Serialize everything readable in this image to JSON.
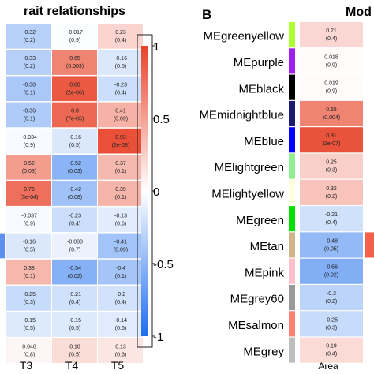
{
  "chart_data": [
    {
      "type": "heatmap",
      "title": "rait relationships",
      "columns": [
        "T3",
        "T4",
        "T5"
      ],
      "cells": [
        [
          {
            "v": "-0.32",
            "p": "(0.2)"
          },
          {
            "v": "-0.017",
            "p": "(0.9)"
          },
          {
            "v": "0.23",
            "p": "(0.4)"
          }
        ],
        [
          {
            "v": "-0.33",
            "p": "(0.2)"
          },
          {
            "v": "0.65",
            "p": "(0.003)"
          },
          {
            "v": "-0.16",
            "p": "(0.5)"
          }
        ],
        [
          {
            "v": "-0.38",
            "p": "(0.1)"
          },
          {
            "v": "0.88",
            "p": "(2e-06)"
          },
          {
            "v": "-0.23",
            "p": "(0.4)"
          }
        ],
        [
          {
            "v": "-0.36",
            "p": "(0.1)"
          },
          {
            "v": "0.8",
            "p": "(7e-05)"
          },
          {
            "v": "0.41",
            "p": "(0.09)"
          }
        ],
        [
          {
            "v": "-0.034",
            "p": "(0.9)"
          },
          {
            "v": "-0.16",
            "p": "(0.5)"
          },
          {
            "v": "0.93",
            "p": "(2e-08)"
          }
        ],
        [
          {
            "v": "0.52",
            "p": "(0.03)"
          },
          {
            "v": "-0.52",
            "p": "(0.03)"
          },
          {
            "v": "0.37",
            "p": "(0.1)"
          }
        ],
        [
          {
            "v": "0.76",
            "p": "(3e-04)"
          },
          {
            "v": "-0.42",
            "p": "(0.08)"
          },
          {
            "v": "0.39",
            "p": "(0.1)"
          }
        ],
        [
          {
            "v": "-0.037",
            "p": "(0.9)"
          },
          {
            "v": "-0.23",
            "p": "(0.4)"
          },
          {
            "v": "-0.13",
            "p": "(0.6)"
          }
        ],
        [
          {
            "v": "-0.16",
            "p": "(0.5)"
          },
          {
            "v": "-0.088",
            "p": "(0.7)"
          },
          {
            "v": "-0.41",
            "p": "(0.09)"
          }
        ],
        [
          {
            "v": "0.38",
            "p": "(0.1)"
          },
          {
            "v": "-0.54",
            "p": "(0.02)"
          },
          {
            "v": "-0.4",
            "p": "(0.1)"
          }
        ],
        [
          {
            "v": "-0.25",
            "p": "(0.3)"
          },
          {
            "v": "-0.21",
            "p": "(0.4)"
          },
          {
            "v": "-0.2",
            "p": "(0.4)"
          }
        ],
        [
          {
            "v": "-0.15",
            "p": "(0.5)"
          },
          {
            "v": "-0.15",
            "p": "(0.5)"
          },
          {
            "v": "-0.14",
            "p": "(0.6)"
          }
        ],
        [
          {
            "v": "0.048",
            "p": "(0.8)"
          },
          {
            "v": "0.18",
            "p": "(0.5)"
          },
          {
            "v": "0.13",
            "p": "(0.6)"
          }
        ]
      ],
      "left_partial_colors": [
        "#ffffff",
        "#ffffff",
        "#ffffff",
        "#ffffff",
        "#ffffff",
        "#ffffff",
        "#ffffff",
        "#ffffff",
        "#5b8ff0",
        "#ffffff",
        "#ffffff",
        "#ffffff",
        "#ffffff"
      ],
      "colorbar": {
        "ticks": [
          "1",
          "0.5",
          "0",
          "-0.5",
          "-1"
        ],
        "ticks_values": [
          1,
          0.5,
          0,
          -0.5,
          -1
        ],
        "range": [
          -1,
          1
        ]
      }
    },
    {
      "type": "heatmap",
      "panel_letter": "B",
      "title": "Mod",
      "rows": [
        "MEgreenyellow",
        "MEpurple",
        "MEblack",
        "MEmidnightblue",
        "MEblue",
        "MElightgreen",
        "MElightyellow",
        "MEgreen",
        "MEtan",
        "MEpink",
        "MEgrey60",
        "MEsalmon",
        "MEgrey"
      ],
      "module_colors": [
        "#adff2f",
        "#a020f0",
        "#000000",
        "#191970",
        "#0000ff",
        "#90ee90",
        "#ffffe0",
        "#00e000",
        "#d2b48c",
        "#ffc0cb",
        "#999999",
        "#fa8072",
        "#bebebe"
      ],
      "columns": [
        "Area"
      ],
      "cells": [
        {
          "v": "0.21",
          "p": "(0.4)"
        },
        {
          "v": "0.018",
          "p": "(0.9)"
        },
        {
          "v": "0.019",
          "p": "(0.9)"
        },
        {
          "v": "0.65",
          "p": "(0.004)"
        },
        {
          "v": "0.91",
          "p": "(2e-07)"
        },
        {
          "v": "0.25",
          "p": "(0.3)"
        },
        {
          "v": "0.32",
          "p": "(0.2)"
        },
        {
          "v": "-0.21",
          "p": "(0.4)"
        },
        {
          "v": "-0.48",
          "p": "(0.05)"
        },
        {
          "v": "-0.56",
          "p": "(0.02)"
        },
        {
          "v": "-0.3",
          "p": "(0.2)"
        },
        {
          "v": "-0.25",
          "p": "(0.3)"
        },
        {
          "v": "0.19",
          "p": "(0.4)"
        }
      ],
      "right_partial_colors": [
        "#ffffff",
        "#ffffff",
        "#ffffff",
        "#ffffff",
        "#ffffff",
        "#ffffff",
        "#ffffff",
        "#ffffff",
        "#f2604a",
        "#ffffff",
        "#ffffff",
        "#ffffff",
        "#ffffff"
      ]
    }
  ]
}
